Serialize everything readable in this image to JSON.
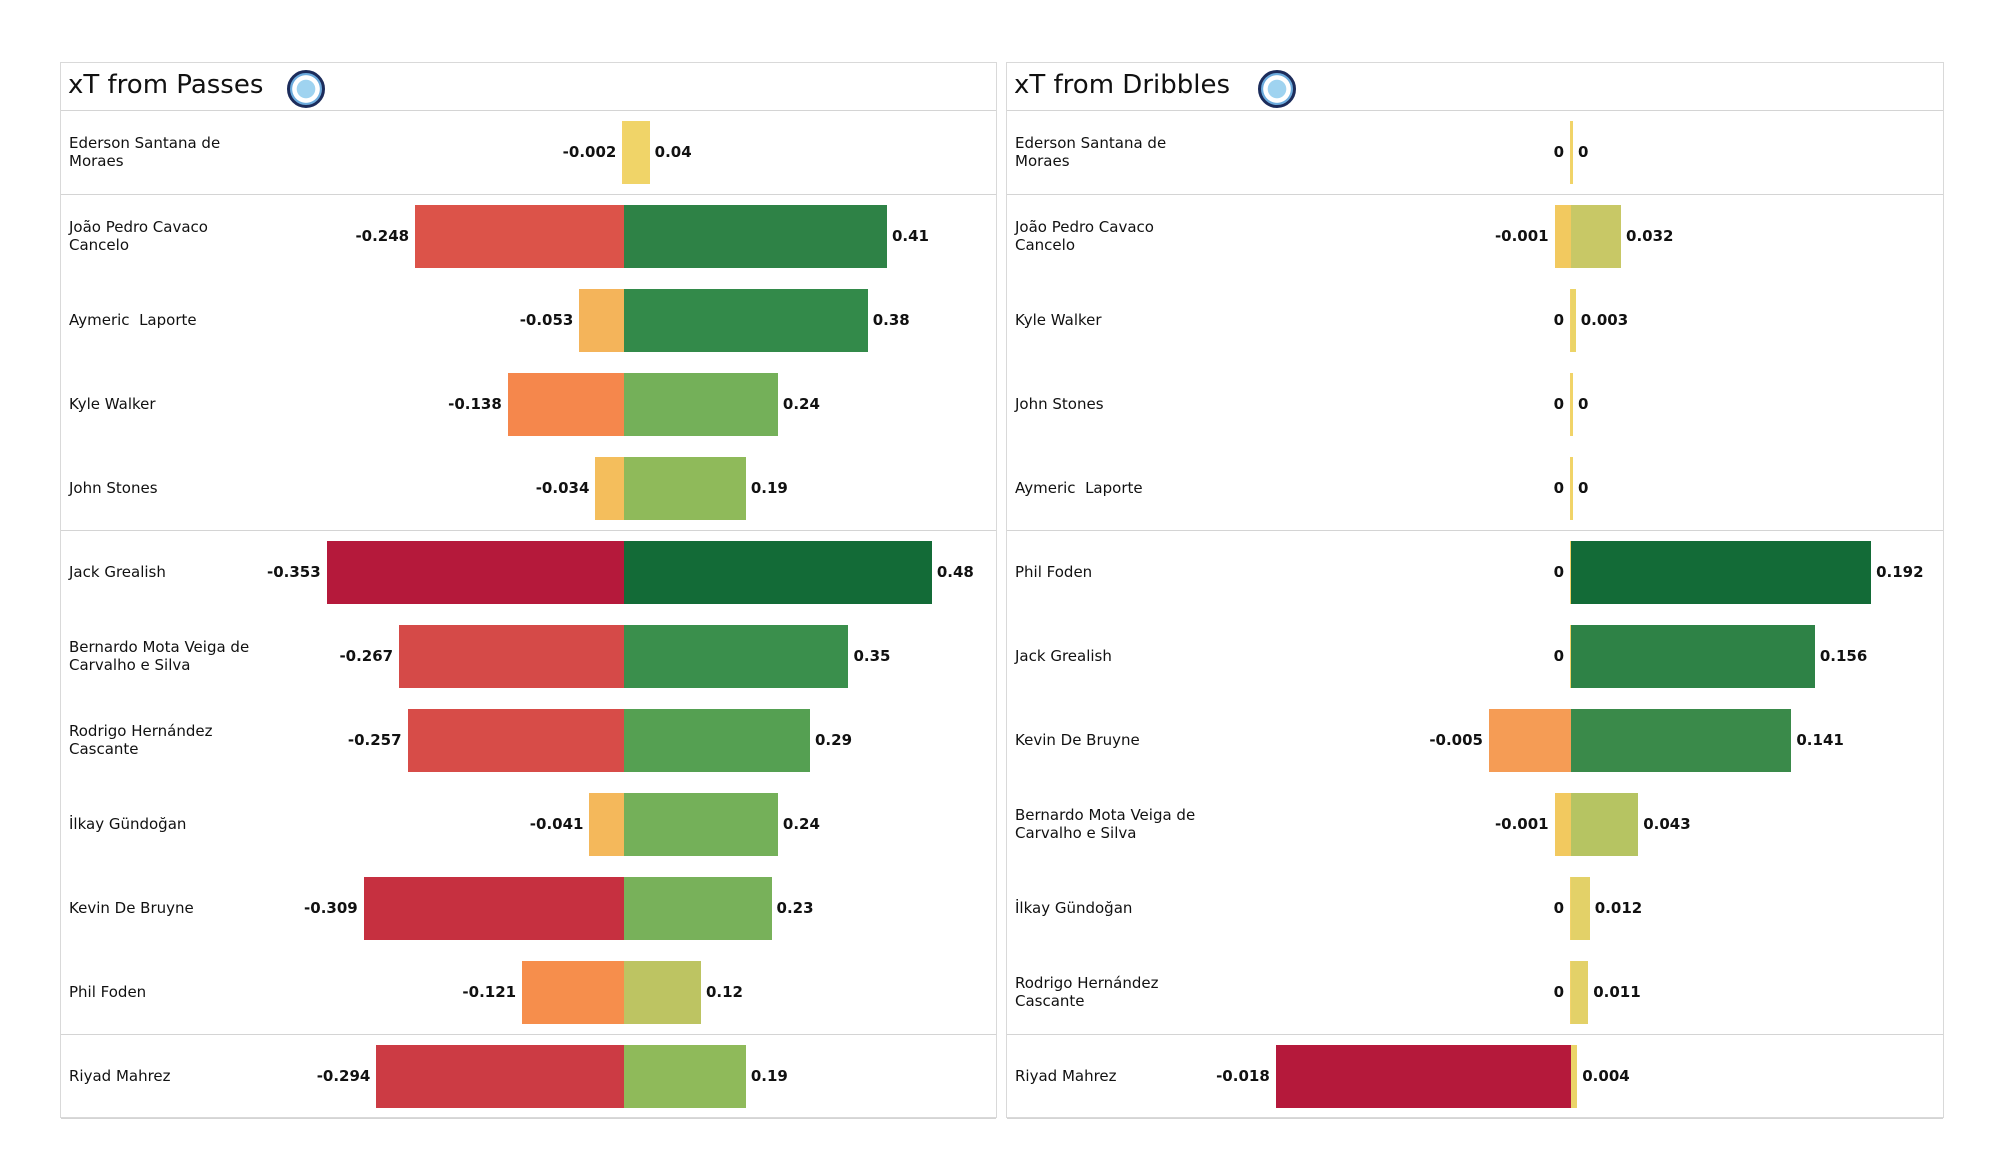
{
  "chart_data": [
    {
      "type": "bar",
      "title": "xT from Passes",
      "categories": [
        "Ederson Santana de Moraes",
        "João Pedro Cavaco Cancelo",
        "Aymeric  Laporte",
        "Kyle Walker",
        "John Stones",
        "Jack Grealish",
        "Bernardo Mota Veiga de Carvalho e Silva",
        "Rodrigo Hernández Cascante",
        "İlkay Gündoğan",
        "Kevin De Bruyne",
        "Phil Foden",
        "Riyad Mahrez"
      ],
      "series": [
        {
          "values": [
            -0.002,
            -0.248,
            -0.053,
            -0.138,
            -0.034,
            -0.353,
            -0.267,
            -0.257,
            -0.041,
            -0.309,
            -0.121,
            -0.294
          ],
          "colors": [
            "#f3d36a",
            "#dc5349",
            "#f4b45a",
            "#f5874c",
            "#f4be5c",
            "#b5193b",
            "#d54a48",
            "#d74c48",
            "#f4b85b",
            "#c63040",
            "#f68e4c",
            "#cc3b44"
          ]
        },
        {
          "values": [
            0.04,
            0.41,
            0.38,
            0.24,
            0.19,
            0.48,
            0.35,
            0.29,
            0.24,
            0.23,
            0.12,
            0.19
          ],
          "colors": [
            "#f0d468",
            "#2e8246",
            "#338a4a",
            "#74b059",
            "#8fba5a",
            "#136b37",
            "#3a8f4c",
            "#55a052",
            "#74b059",
            "#78b15a",
            "#bdc462",
            "#8fba5a"
          ]
        }
      ],
      "xlim": [
        -0.444,
        0.58
      ]
    },
    {
      "type": "bar",
      "title": "xT from Dribbles",
      "categories": [
        "Ederson Santana de Moraes",
        "João Pedro Cavaco Cancelo",
        "Kyle Walker",
        "John Stones",
        "Aymeric  Laporte",
        "Phil Foden",
        "Jack Grealish",
        "Kevin De Bruyne",
        "Bernardo Mota Veiga de Carvalho e Silva",
        "İlkay Gündoğan",
        "Rodrigo Hernández Cascante",
        "Riyad Mahrez"
      ],
      "series": [
        {
          "values": [
            0,
            -0.001,
            0,
            0,
            0,
            0,
            0,
            -0.005,
            -0.001,
            0,
            0,
            -0.018
          ],
          "colors": [
            "#f3d36a",
            "#f2c95f",
            "#f3d36a",
            "#f3d36a",
            "#f3d36a",
            "#f3d36a",
            "#f3d36a",
            "#f59c55",
            "#f2c95f",
            "#f3d36a",
            "#f3d36a",
            "#b5193b"
          ]
        },
        {
          "values": [
            0,
            0.032,
            0.003,
            0,
            0,
            0.192,
            0.156,
            0.141,
            0.043,
            0.012,
            0.011,
            0.004
          ],
          "colors": [
            "#f0d468",
            "#c8c866",
            "#ebd468",
            "#f0d468",
            "#f0d468",
            "#136b37",
            "#2e8246",
            "#3a8a4a",
            "#b6c462",
            "#e3d168",
            "#e3d168",
            "#ebd468"
          ]
        }
      ],
      "xlim": [
        -0.0228,
        0.238
      ]
    }
  ]
}
